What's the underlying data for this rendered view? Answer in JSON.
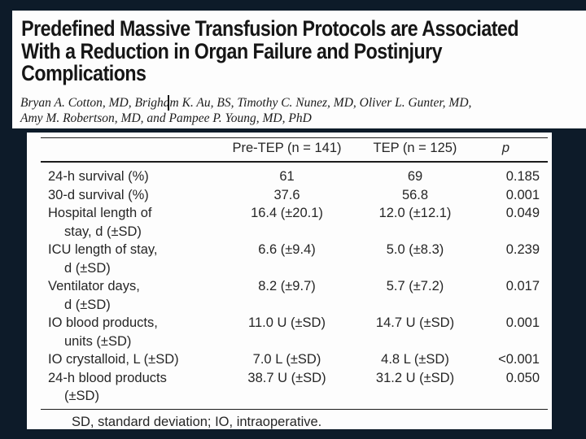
{
  "colors": {
    "background": "#0d1b29",
    "card": "#fdfdfd",
    "ink": "#1c1c1c"
  },
  "paper": {
    "title_lines": [
      "Predefined Massive Transfusion Protocols are Associated",
      "With a Reduction in Organ Failure and Postinjury",
      "Complications"
    ],
    "authors_lines": [
      "Bryan A. Cotton, MD, Brigham K. Au, BS, Timothy C. Nunez, MD, Oliver L. Gunter, MD,",
      "Amy M. Robertson, MD, and Pampee P. Young, MD, PhD"
    ]
  },
  "table": {
    "headers": [
      "",
      "Pre-TEP (n = 141)",
      "TEP (n = 125)",
      "p"
    ],
    "rows": [
      {
        "label": "24-h survival (%)",
        "label2": "",
        "pre_tep": "61",
        "tep": "69",
        "p": "0.185"
      },
      {
        "label": "30-d survival (%)",
        "label2": "",
        "pre_tep": "37.6",
        "tep": "56.8",
        "p": "0.001"
      },
      {
        "label": "Hospital length of",
        "label2": "stay, d (±SD)",
        "pre_tep": "16.4 (±20.1)",
        "tep": "12.0 (±12.1)",
        "p": "0.049"
      },
      {
        "label": "ICU length of stay,",
        "label2": "d (±SD)",
        "pre_tep": "6.6 (±9.4)",
        "tep": "5.0 (±8.3)",
        "p": "0.239"
      },
      {
        "label": "Ventilator days,",
        "label2": "d (±SD)",
        "pre_tep": "8.2 (±9.7)",
        "tep": "5.7 (±7.2)",
        "p": "0.017"
      },
      {
        "label": "IO blood products,",
        "label2": "units (±SD)",
        "pre_tep": "11.0 U (±SD)",
        "tep": "14.7 U (±SD)",
        "p": "0.001"
      },
      {
        "label": "IO crystalloid, L (±SD)",
        "label2": "",
        "pre_tep": "7.0 L (±SD)",
        "tep": "4.8 L (±SD)",
        "p": "<0.001"
      },
      {
        "label": "24-h blood products",
        "label2": "(±SD)",
        "pre_tep": "38.7 U (±SD)",
        "tep": "31.2 U (±SD)",
        "p": "0.050"
      }
    ],
    "footnote": "SD, standard deviation; IO, intraoperative."
  }
}
